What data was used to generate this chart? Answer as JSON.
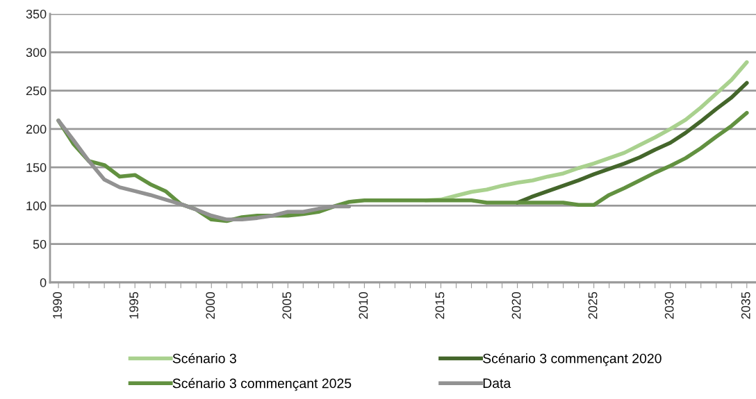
{
  "chart_data": {
    "type": "line",
    "x": [
      1990,
      1991,
      1992,
      1993,
      1994,
      1995,
      1996,
      1997,
      1998,
      1999,
      2000,
      2001,
      2002,
      2003,
      2004,
      2005,
      2006,
      2007,
      2008,
      2009,
      2010,
      2011,
      2012,
      2013,
      2014,
      2015,
      2016,
      2017,
      2018,
      2019,
      2020,
      2021,
      2022,
      2023,
      2024,
      2025,
      2026,
      2027,
      2028,
      2029,
      2030,
      2031,
      2032,
      2033,
      2034,
      2035
    ],
    "series": [
      {
        "name": "Scénario 3",
        "color": "#a9d18e",
        "values": [
          null,
          null,
          null,
          null,
          null,
          null,
          null,
          null,
          null,
          null,
          null,
          null,
          null,
          null,
          null,
          null,
          null,
          null,
          null,
          null,
          null,
          null,
          null,
          null,
          107,
          108,
          113,
          118,
          121,
          126,
          130,
          133,
          138,
          142,
          149,
          155,
          162,
          169,
          179,
          189,
          200,
          212,
          228,
          246,
          264,
          287
        ]
      },
      {
        "name": "Scénario 3 commençant 2020",
        "color": "#44662b",
        "values": [
          null,
          null,
          null,
          null,
          null,
          null,
          null,
          null,
          null,
          null,
          null,
          null,
          null,
          null,
          null,
          null,
          null,
          null,
          null,
          null,
          null,
          null,
          null,
          null,
          null,
          null,
          null,
          null,
          null,
          null,
          104,
          112,
          119,
          126,
          133,
          141,
          148,
          155,
          163,
          173,
          182,
          195,
          210,
          226,
          241,
          260
        ]
      },
      {
        "name": "Scénario 3 commençant 2025",
        "color": "#629140",
        "values": [
          211,
          180,
          158,
          153,
          138,
          140,
          128,
          119,
          102,
          95,
          82,
          80,
          85,
          87,
          87,
          87,
          89,
          92,
          99,
          105,
          107,
          107,
          107,
          107,
          107,
          107,
          107,
          107,
          104,
          104,
          104,
          104,
          104,
          104,
          101,
          101,
          114,
          123,
          133,
          143,
          152,
          162,
          175,
          190,
          204,
          221
        ]
      },
      {
        "name": "Data",
        "color": "#929292",
        "values": [
          211,
          185,
          158,
          134,
          124,
          119,
          114,
          108,
          102,
          95,
          87,
          82,
          82,
          84,
          87,
          92,
          92,
          96,
          99,
          99,
          null,
          null,
          null,
          null,
          null,
          null,
          null,
          null,
          null,
          null,
          null,
          null,
          null,
          null,
          null,
          null,
          null,
          null,
          null,
          null,
          null,
          null,
          null,
          null,
          null,
          null
        ]
      }
    ],
    "xlim": [
      1989.45,
      2035.6
    ],
    "xticks": [
      1990,
      {
        "value": 1991,
        "label": null
      },
      {
        "value": 1992,
        "label": null
      },
      {
        "value": 1993,
        "label": null
      },
      {
        "value": 1994,
        "label": null
      },
      1995,
      {
        "value": 1996,
        "label": null
      },
      {
        "value": 1997,
        "label": null
      },
      {
        "value": 1998,
        "label": null
      },
      {
        "value": 1999,
        "label": null
      },
      2000,
      {
        "value": 2001,
        "label": null
      },
      {
        "value": 2002,
        "label": null
      },
      {
        "value": 2003,
        "label": null
      },
      {
        "value": 2004,
        "label": null
      },
      2005,
      {
        "value": 2006,
        "label": null
      },
      {
        "value": 2007,
        "label": null
      },
      {
        "value": 2008,
        "label": null
      },
      {
        "value": 2009,
        "label": null
      },
      2010,
      {
        "value": 2011,
        "label": null
      },
      {
        "value": 2012,
        "label": null
      },
      {
        "value": 2013,
        "label": null
      },
      {
        "value": 2014,
        "label": null
      },
      2015,
      {
        "value": 2016,
        "label": null
      },
      {
        "value": 2017,
        "label": null
      },
      {
        "value": 2018,
        "label": null
      },
      {
        "value": 2019,
        "label": null
      },
      2020,
      {
        "value": 2021,
        "label": null
      },
      {
        "value": 2022,
        "label": null
      },
      {
        "value": 2023,
        "label": null
      },
      {
        "value": 2024,
        "label": null
      },
      2025,
      {
        "value": 2026,
        "label": null
      },
      {
        "value": 2027,
        "label": null
      },
      {
        "value": 2028,
        "label": null
      },
      {
        "value": 2029,
        "label": null
      },
      2030,
      {
        "value": 2031,
        "label": null
      },
      {
        "value": 2032,
        "label": null
      },
      {
        "value": 2033,
        "label": null
      },
      {
        "value": 2034,
        "label": null
      },
      2035
    ],
    "ylim": [
      0,
      350
    ],
    "yticks": [
      0,
      50,
      100,
      150,
      200,
      250,
      300,
      350
    ],
    "grid": "y",
    "legend": "bottom",
    "marker": "none",
    "line_style": "solid"
  }
}
